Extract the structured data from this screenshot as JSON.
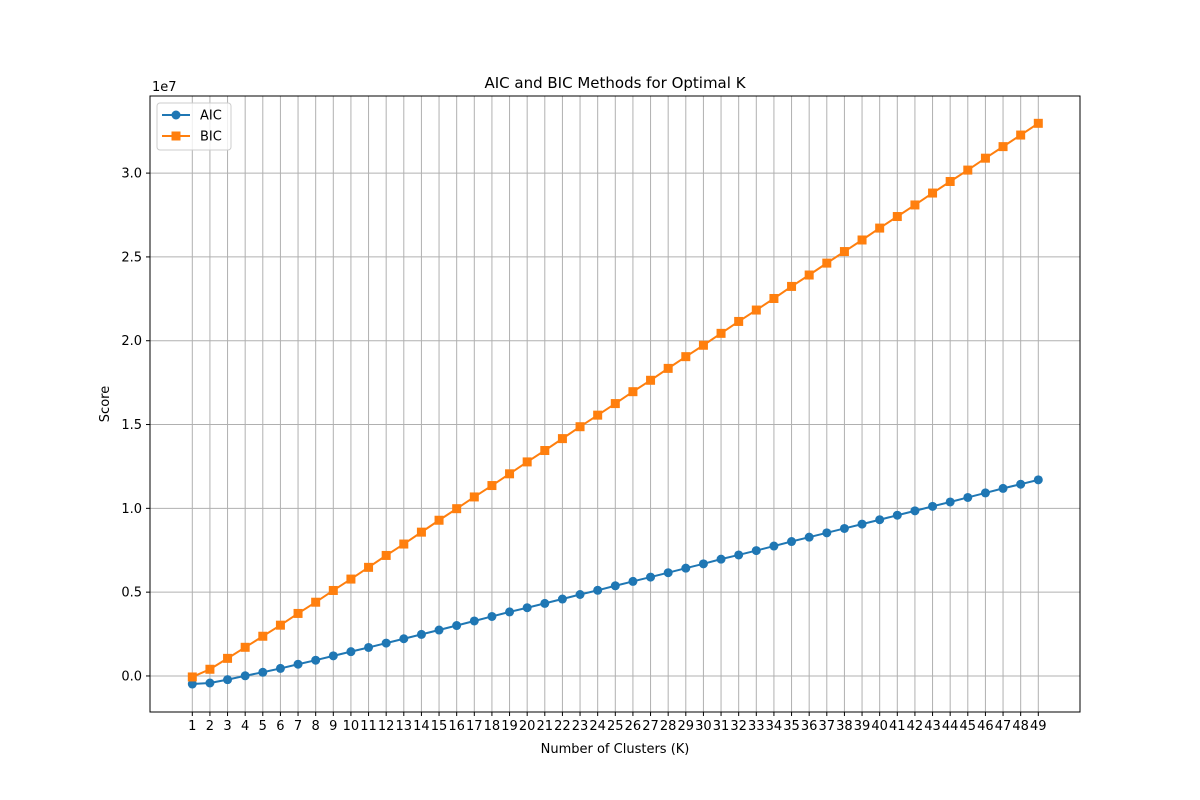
{
  "chart_data": {
    "type": "line",
    "title": "AIC and BIC Methods for Optimal K",
    "xlabel": "Number of Clusters (K)",
    "ylabel": "Score",
    "y_offset_label": "1e7",
    "x": [
      1,
      2,
      3,
      4,
      5,
      6,
      7,
      8,
      9,
      10,
      11,
      12,
      13,
      14,
      15,
      16,
      17,
      18,
      19,
      20,
      21,
      22,
      23,
      24,
      25,
      26,
      27,
      28,
      29,
      30,
      31,
      32,
      33,
      34,
      35,
      36,
      37,
      38,
      39,
      40,
      41,
      42,
      43,
      44,
      45,
      46,
      47,
      48,
      49
    ],
    "y_tick_values": [
      0.0,
      0.5,
      1.0,
      1.5,
      2.0,
      2.5,
      3.0
    ],
    "y_tick_labels": [
      "0.0",
      "0.5",
      "1.0",
      "1.5",
      "2.0",
      "2.5",
      "3.0"
    ],
    "ylim": [
      -0.215,
      3.46
    ],
    "grid": true,
    "legend_position": "upper-left",
    "series": [
      {
        "name": "AIC",
        "color": "#1f77b4",
        "marker": "circle",
        "values": [
          -0.048,
          -0.042,
          -0.022,
          0.001,
          0.022,
          0.045,
          0.07,
          0.094,
          0.12,
          0.145,
          0.17,
          0.196,
          0.222,
          0.248,
          0.274,
          0.301,
          0.328,
          0.355,
          0.382,
          0.407,
          0.433,
          0.459,
          0.486,
          0.511,
          0.538,
          0.564,
          0.59,
          0.616,
          0.643,
          0.669,
          0.697,
          0.722,
          0.748,
          0.775,
          0.802,
          0.828,
          0.854,
          0.88,
          0.906,
          0.932,
          0.959,
          0.985,
          1.012,
          1.038,
          1.065,
          1.092,
          1.119,
          1.144,
          1.17
        ]
      },
      {
        "name": "BIC",
        "color": "#ff7f0e",
        "marker": "square",
        "values": [
          -0.006,
          0.04,
          0.105,
          0.171,
          0.237,
          0.303,
          0.373,
          0.44,
          0.51,
          0.578,
          0.648,
          0.719,
          0.787,
          0.858,
          0.929,
          0.998,
          1.068,
          1.136,
          1.206,
          1.277,
          1.345,
          1.416,
          1.487,
          1.556,
          1.625,
          1.696,
          1.764,
          1.835,
          1.905,
          1.973,
          2.044,
          2.115,
          2.183,
          2.252,
          2.324,
          2.392,
          2.463,
          2.532,
          2.601,
          2.672,
          2.741,
          2.81,
          2.881,
          2.95,
          3.018,
          3.089,
          3.158,
          3.227,
          3.297
        ]
      }
    ]
  }
}
